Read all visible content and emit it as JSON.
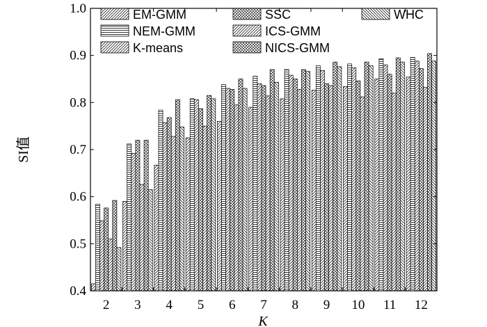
{
  "chart_data": {
    "type": "bar",
    "xlabel": "K",
    "ylabel": "SI值",
    "ylim": [
      0.4,
      1.0
    ],
    "yticks": [
      "0.4",
      "0.5",
      "0.6",
      "0.7",
      "0.8",
      "0.9",
      "1.0"
    ],
    "categories": [
      "2",
      "3",
      "4",
      "5",
      "6",
      "7",
      "8",
      "9",
      "10",
      "11",
      "12"
    ],
    "grid": false,
    "legend_position": "top",
    "series": [
      {
        "name": "EM-GMM",
        "pattern": "fwd",
        "values": [
          0.415,
          0.59,
          0.667,
          0.725,
          0.76,
          0.79,
          0.808,
          0.826,
          0.834,
          0.85,
          0.854
        ]
      },
      {
        "name": "NEM-GMM",
        "pattern": "horiz",
        "values": [
          0.584,
          0.712,
          0.784,
          0.808,
          0.838,
          0.856,
          0.87,
          0.878,
          0.882,
          0.893,
          0.896
        ]
      },
      {
        "name": "K-means",
        "pattern": "fwd",
        "values": [
          0.549,
          0.692,
          0.757,
          0.806,
          0.83,
          0.84,
          0.858,
          0.868,
          0.874,
          0.88,
          0.888
        ]
      },
      {
        "name": "SSC",
        "pattern": "cross",
        "values": [
          0.576,
          0.72,
          0.768,
          0.787,
          0.828,
          0.836,
          0.85,
          0.84,
          0.846,
          0.86,
          0.872
        ]
      },
      {
        "name": "ICS-GMM",
        "pattern": "fwd",
        "values": [
          0.51,
          0.626,
          0.728,
          0.75,
          0.795,
          0.814,
          0.828,
          0.836,
          0.812,
          0.82,
          0.832
        ]
      },
      {
        "name": "NICS-GMM",
        "pattern": "cross",
        "values": [
          0.592,
          0.72,
          0.806,
          0.815,
          0.85,
          0.87,
          0.87,
          0.886,
          0.886,
          0.895,
          0.904
        ]
      },
      {
        "name": "WHC",
        "pattern": "back",
        "values": [
          0.492,
          0.615,
          0.748,
          0.808,
          0.83,
          0.843,
          0.866,
          0.876,
          0.878,
          0.886,
          0.888
        ]
      }
    ]
  }
}
